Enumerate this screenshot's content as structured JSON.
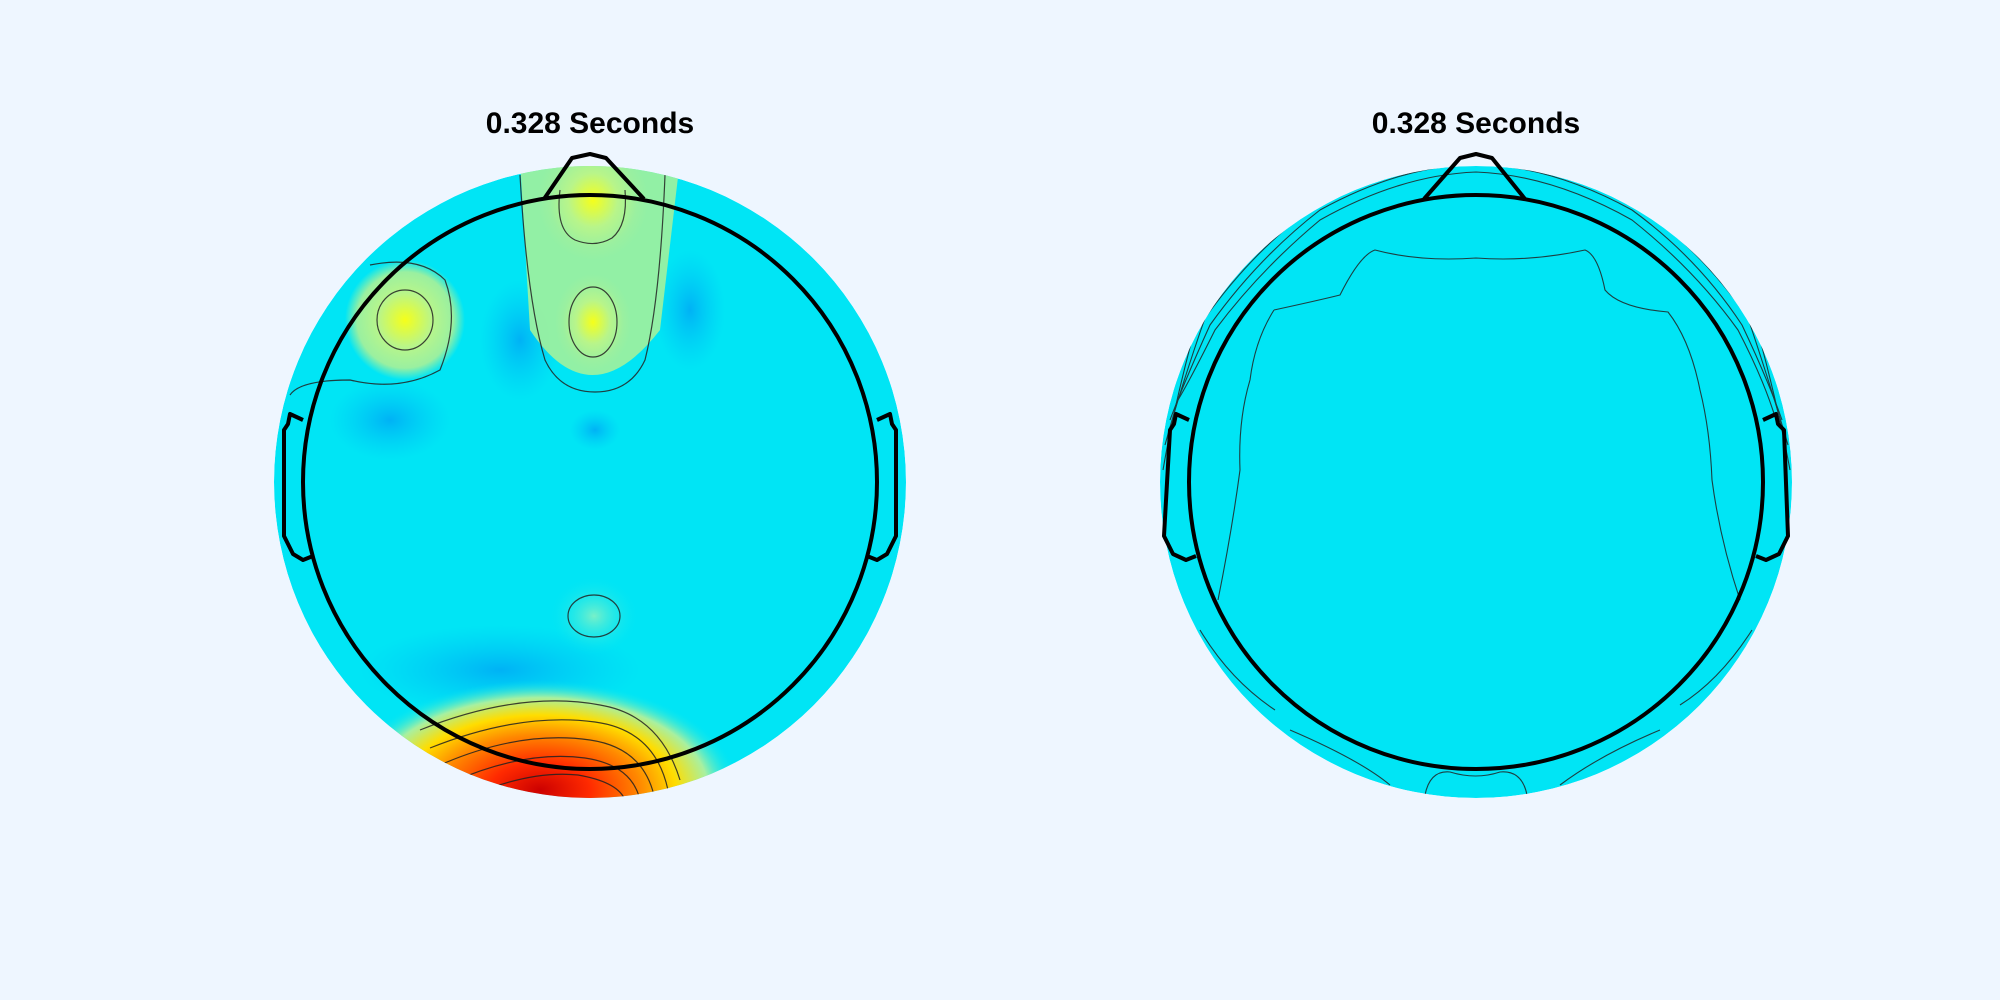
{
  "chart_data": [
    {
      "type": "heatmap",
      "title": "0.328 Seconds",
      "colormap": "jet",
      "head_outline": true,
      "contours": true,
      "hotspots": [
        {
          "location": "frontal-midline (nasion)",
          "value": 0.72
        },
        {
          "location": "left-frontal",
          "value": 0.68
        },
        {
          "location": "frontal-midline (inner)",
          "value": 0.66
        },
        {
          "location": "central-midline",
          "value": 0.48
        },
        {
          "location": "occipital",
          "value": 1.0
        },
        {
          "location": "left-temporal",
          "value": 0.32
        },
        {
          "location": "posterior-parietal",
          "value": 0.33
        }
      ],
      "background_value": 0.42
    },
    {
      "type": "heatmap",
      "title": "0.328 Seconds",
      "colormap": "jet",
      "head_outline": true,
      "contours": true,
      "uniform_value": 0.42
    }
  ]
}
